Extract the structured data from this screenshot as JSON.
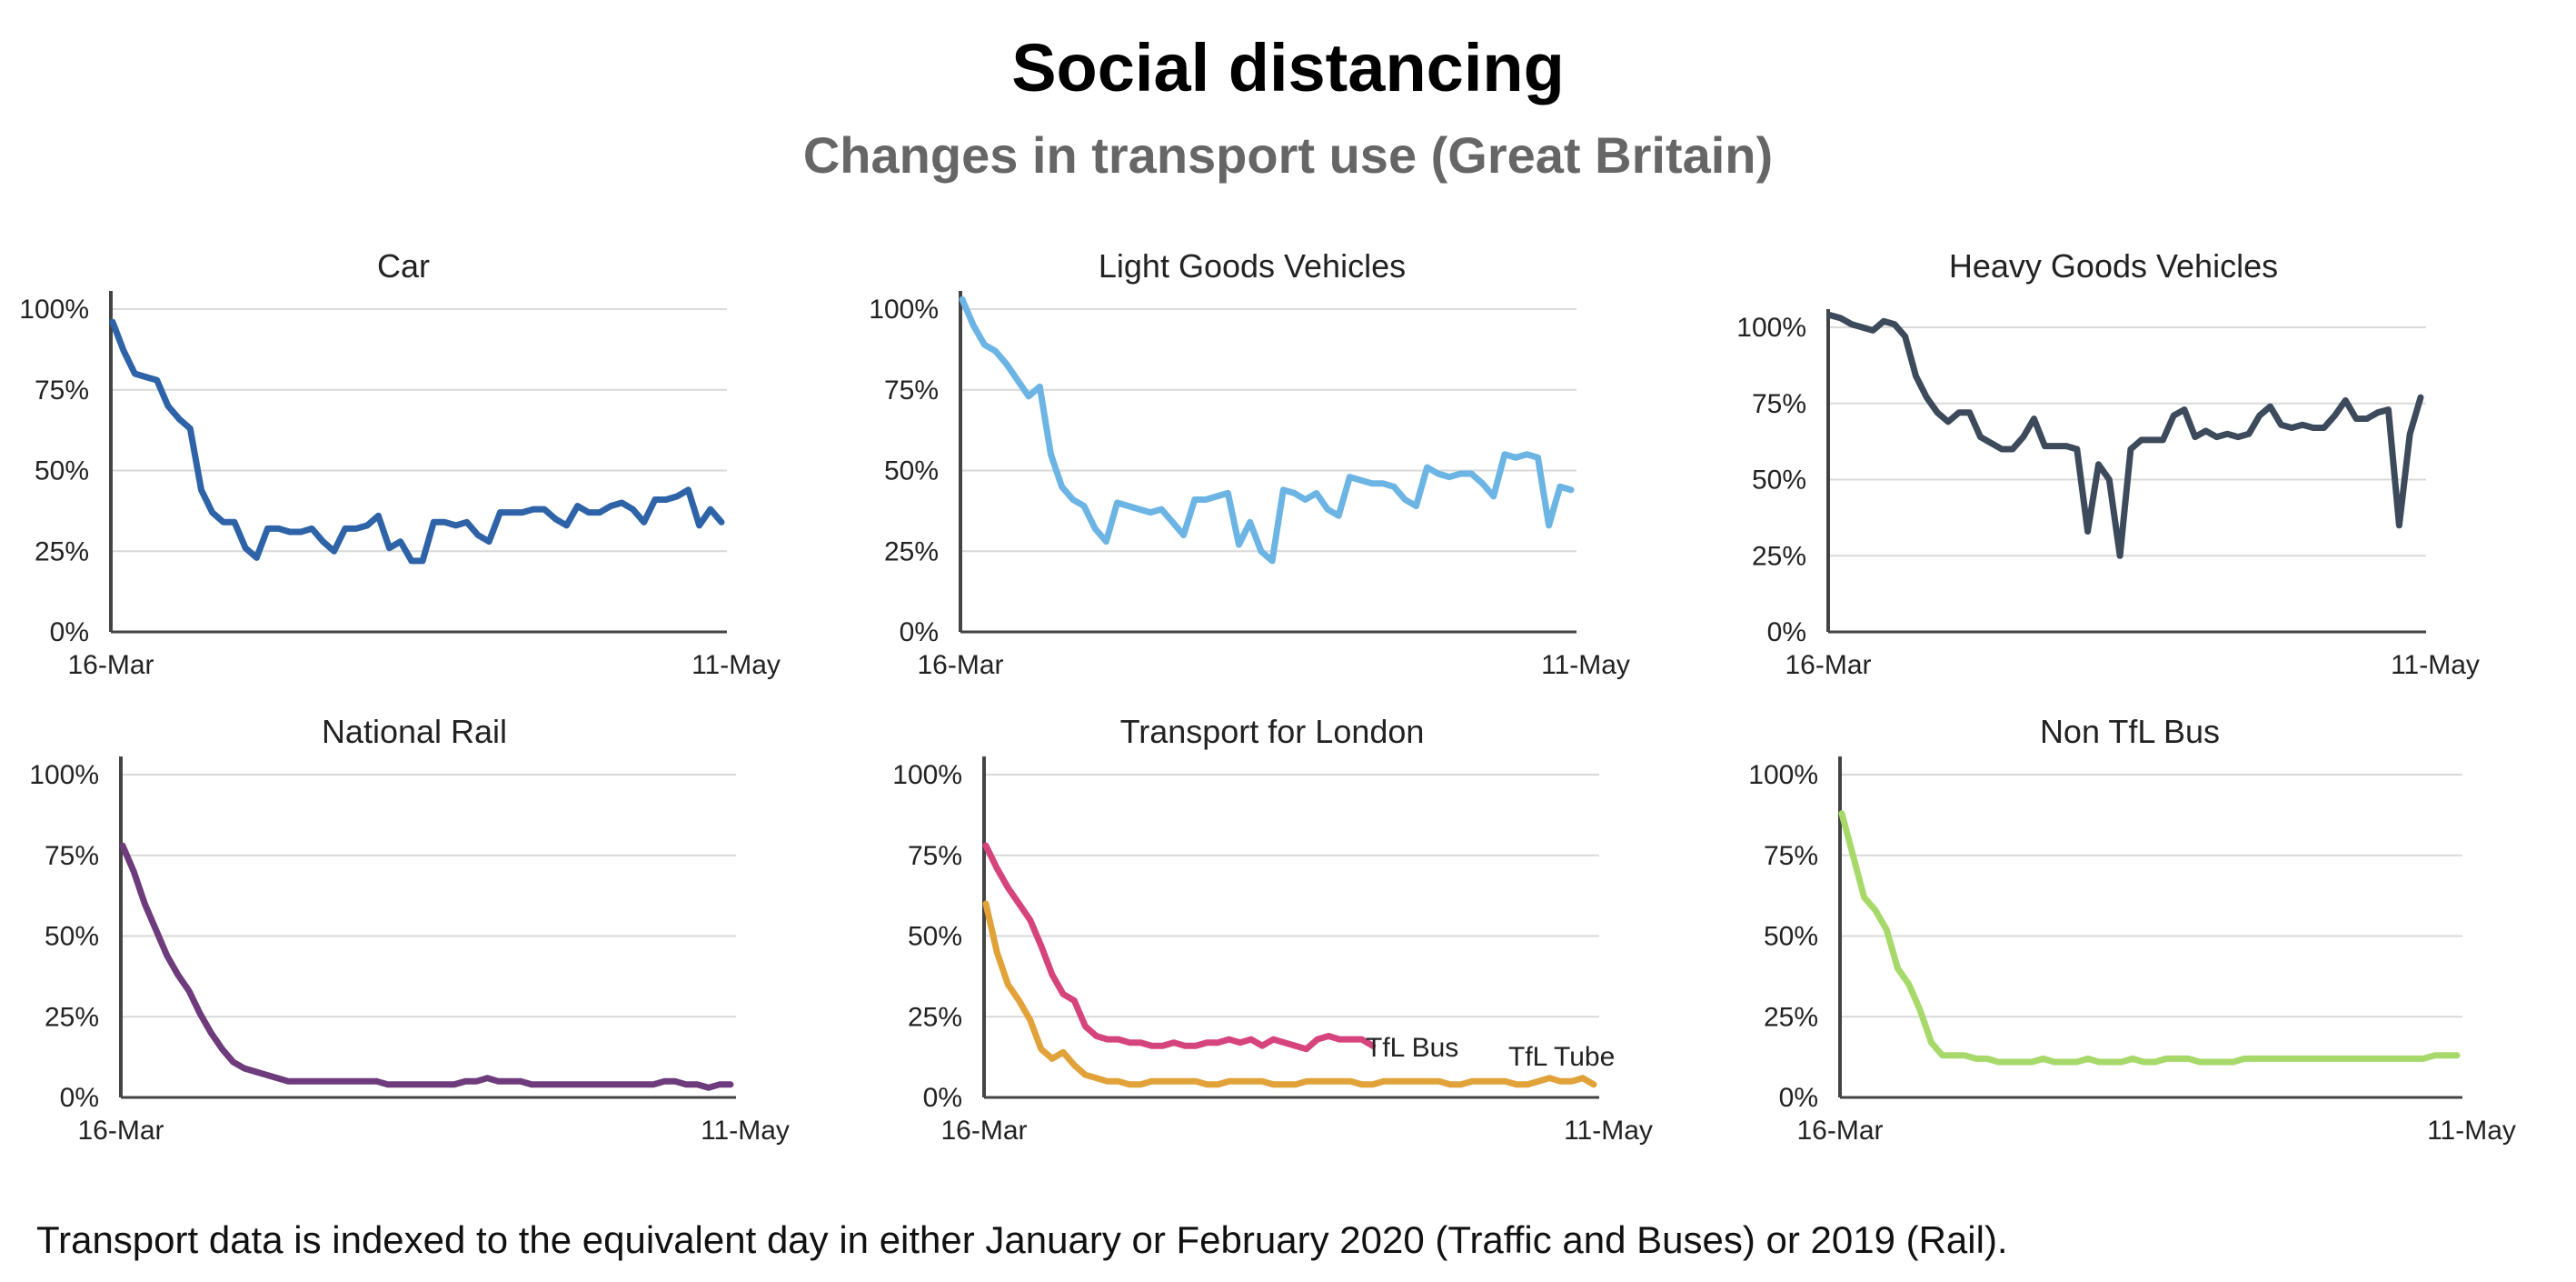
{
  "title": "Social distancing",
  "subtitle": "Changes in transport use (Great Britain)",
  "footnote": "Transport data is indexed to the equivalent day in either January or February 2020 (Traffic and Buses) or 2019 (Rail).",
  "colors": {
    "car": "#2E63A8",
    "lgv": "#6CB4E4",
    "hgv": "#3C4A5C",
    "rail": "#6E3B7C",
    "tfl_bus": "#D6447E",
    "tfl_tube": "#E1A23A",
    "non_tfl_bus": "#A6D96A",
    "grid": "#d9d9d9",
    "axis": "#444444"
  },
  "chart_data": [
    {
      "type": "line",
      "title": "Car",
      "x_tick_labels": [
        "16-Mar",
        "11-May"
      ],
      "y_tick_labels": [
        "0%",
        "25%",
        "50%",
        "75%",
        "100%"
      ],
      "ylim": [
        0,
        100
      ],
      "grid": true,
      "series": [
        {
          "values": [
            96,
            87,
            80,
            79,
            78,
            70,
            66,
            63,
            44,
            37,
            34,
            34,
            26,
            23,
            32,
            32,
            31,
            31,
            32,
            28,
            25,
            32,
            32,
            33,
            36,
            26,
            28,
            22,
            22,
            34,
            34,
            33,
            34,
            30,
            28,
            37,
            37,
            37,
            38,
            38,
            35,
            33,
            39,
            37,
            37,
            39,
            40,
            38,
            34,
            41,
            41,
            42,
            44,
            33,
            38,
            34
          ]
        }
      ]
    },
    {
      "type": "line",
      "title": "Light Goods Vehicles",
      "x_tick_labels": [
        "16-Mar",
        "11-May"
      ],
      "y_tick_labels": [
        "0%",
        "25%",
        "50%",
        "75%",
        "100%"
      ],
      "ylim": [
        0,
        100
      ],
      "grid": true,
      "series": [
        {
          "values": [
            103,
            95,
            89,
            87,
            83,
            78,
            73,
            76,
            55,
            45,
            41,
            39,
            32,
            28,
            40,
            39,
            38,
            37,
            38,
            34,
            30,
            41,
            41,
            42,
            43,
            27,
            34,
            25,
            22,
            44,
            43,
            41,
            43,
            38,
            36,
            48,
            47,
            46,
            46,
            45,
            41,
            39,
            51,
            49,
            48,
            49,
            49,
            46,
            42,
            55,
            54,
            55,
            54,
            33,
            45,
            44
          ]
        }
      ]
    },
    {
      "type": "line",
      "title": "Heavy Goods Vehicles",
      "x_tick_labels": [
        "16-Mar",
        "11-May"
      ],
      "y_tick_labels": [
        "0%",
        "25%",
        "50%",
        "75%",
        "100%"
      ],
      "ylim": [
        0,
        100
      ],
      "grid": true,
      "series": [
        {
          "values": [
            104,
            103,
            101,
            100,
            99,
            102,
            101,
            97,
            84,
            77,
            72,
            69,
            72,
            72,
            64,
            62,
            60,
            60,
            64,
            70,
            61,
            61,
            61,
            60,
            33,
            55,
            50,
            25,
            60,
            63,
            63,
            63,
            71,
            73,
            64,
            66,
            64,
            65,
            64,
            65,
            71,
            74,
            68,
            67,
            68,
            67,
            67,
            71,
            76,
            70,
            70,
            72,
            73,
            35,
            65,
            77
          ]
        }
      ]
    },
    {
      "type": "line",
      "title": "National Rail",
      "x_tick_labels": [
        "16-Mar",
        "11-May"
      ],
      "y_tick_labels": [
        "0%",
        "25%",
        "50%",
        "75%",
        "100%"
      ],
      "ylim": [
        0,
        100
      ],
      "grid": true,
      "series": [
        {
          "values": [
            78,
            70,
            60,
            52,
            44,
            38,
            33,
            26,
            20,
            15,
            11,
            9,
            8,
            7,
            6,
            5,
            5,
            5,
            5,
            5,
            5,
            5,
            5,
            5,
            4,
            4,
            4,
            4,
            4,
            4,
            4,
            5,
            5,
            6,
            5,
            5,
            5,
            4,
            4,
            4,
            4,
            4,
            4,
            4,
            4,
            4,
            4,
            4,
            4,
            5,
            5,
            4,
            4,
            3,
            4,
            4
          ]
        }
      ]
    },
    {
      "type": "line",
      "title": "Transport for London",
      "x_tick_labels": [
        "16-Mar",
        "11-May"
      ],
      "y_tick_labels": [
        "0%",
        "25%",
        "50%",
        "75%",
        "100%"
      ],
      "ylim": [
        0,
        100
      ],
      "grid": true,
      "series": [
        {
          "name": "TfL Bus",
          "values": [
            78,
            71,
            65,
            60,
            55,
            47,
            38,
            32,
            30,
            22,
            19,
            18,
            18,
            17,
            17,
            16,
            16,
            17,
            16,
            16,
            17,
            17,
            18,
            17,
            18,
            16,
            18,
            17,
            16,
            15,
            18,
            19,
            18,
            18,
            18,
            16
          ]
        },
        {
          "name": "TfL Tube",
          "values": [
            60,
            45,
            35,
            30,
            24,
            15,
            12,
            14,
            10,
            7,
            6,
            5,
            5,
            4,
            4,
            5,
            5,
            5,
            5,
            5,
            4,
            4,
            5,
            5,
            5,
            5,
            4,
            4,
            4,
            5,
            5,
            5,
            5,
            5,
            4,
            4,
            5,
            5,
            5,
            5,
            5,
            5,
            4,
            4,
            5,
            5,
            5,
            5,
            4,
            4,
            5,
            6,
            5,
            5,
            6,
            4
          ]
        }
      ]
    },
    {
      "type": "line",
      "title": "Non TfL Bus",
      "x_tick_labels": [
        "16-Mar",
        "11-May"
      ],
      "y_tick_labels": [
        "0%",
        "25%",
        "50%",
        "75%",
        "100%"
      ],
      "ylim": [
        0,
        100
      ],
      "grid": true,
      "series": [
        {
          "values": [
            88,
            75,
            62,
            58,
            52,
            40,
            35,
            27,
            17,
            13,
            13,
            13,
            12,
            12,
            11,
            11,
            11,
            11,
            12,
            11,
            11,
            11,
            12,
            11,
            11,
            11,
            12,
            11,
            11,
            12,
            12,
            12,
            11,
            11,
            11,
            11,
            12,
            12,
            12,
            12,
            12,
            12,
            12,
            12,
            12,
            12,
            12,
            12,
            12,
            12,
            12,
            12,
            12,
            13,
            13,
            13
          ]
        }
      ]
    }
  ]
}
